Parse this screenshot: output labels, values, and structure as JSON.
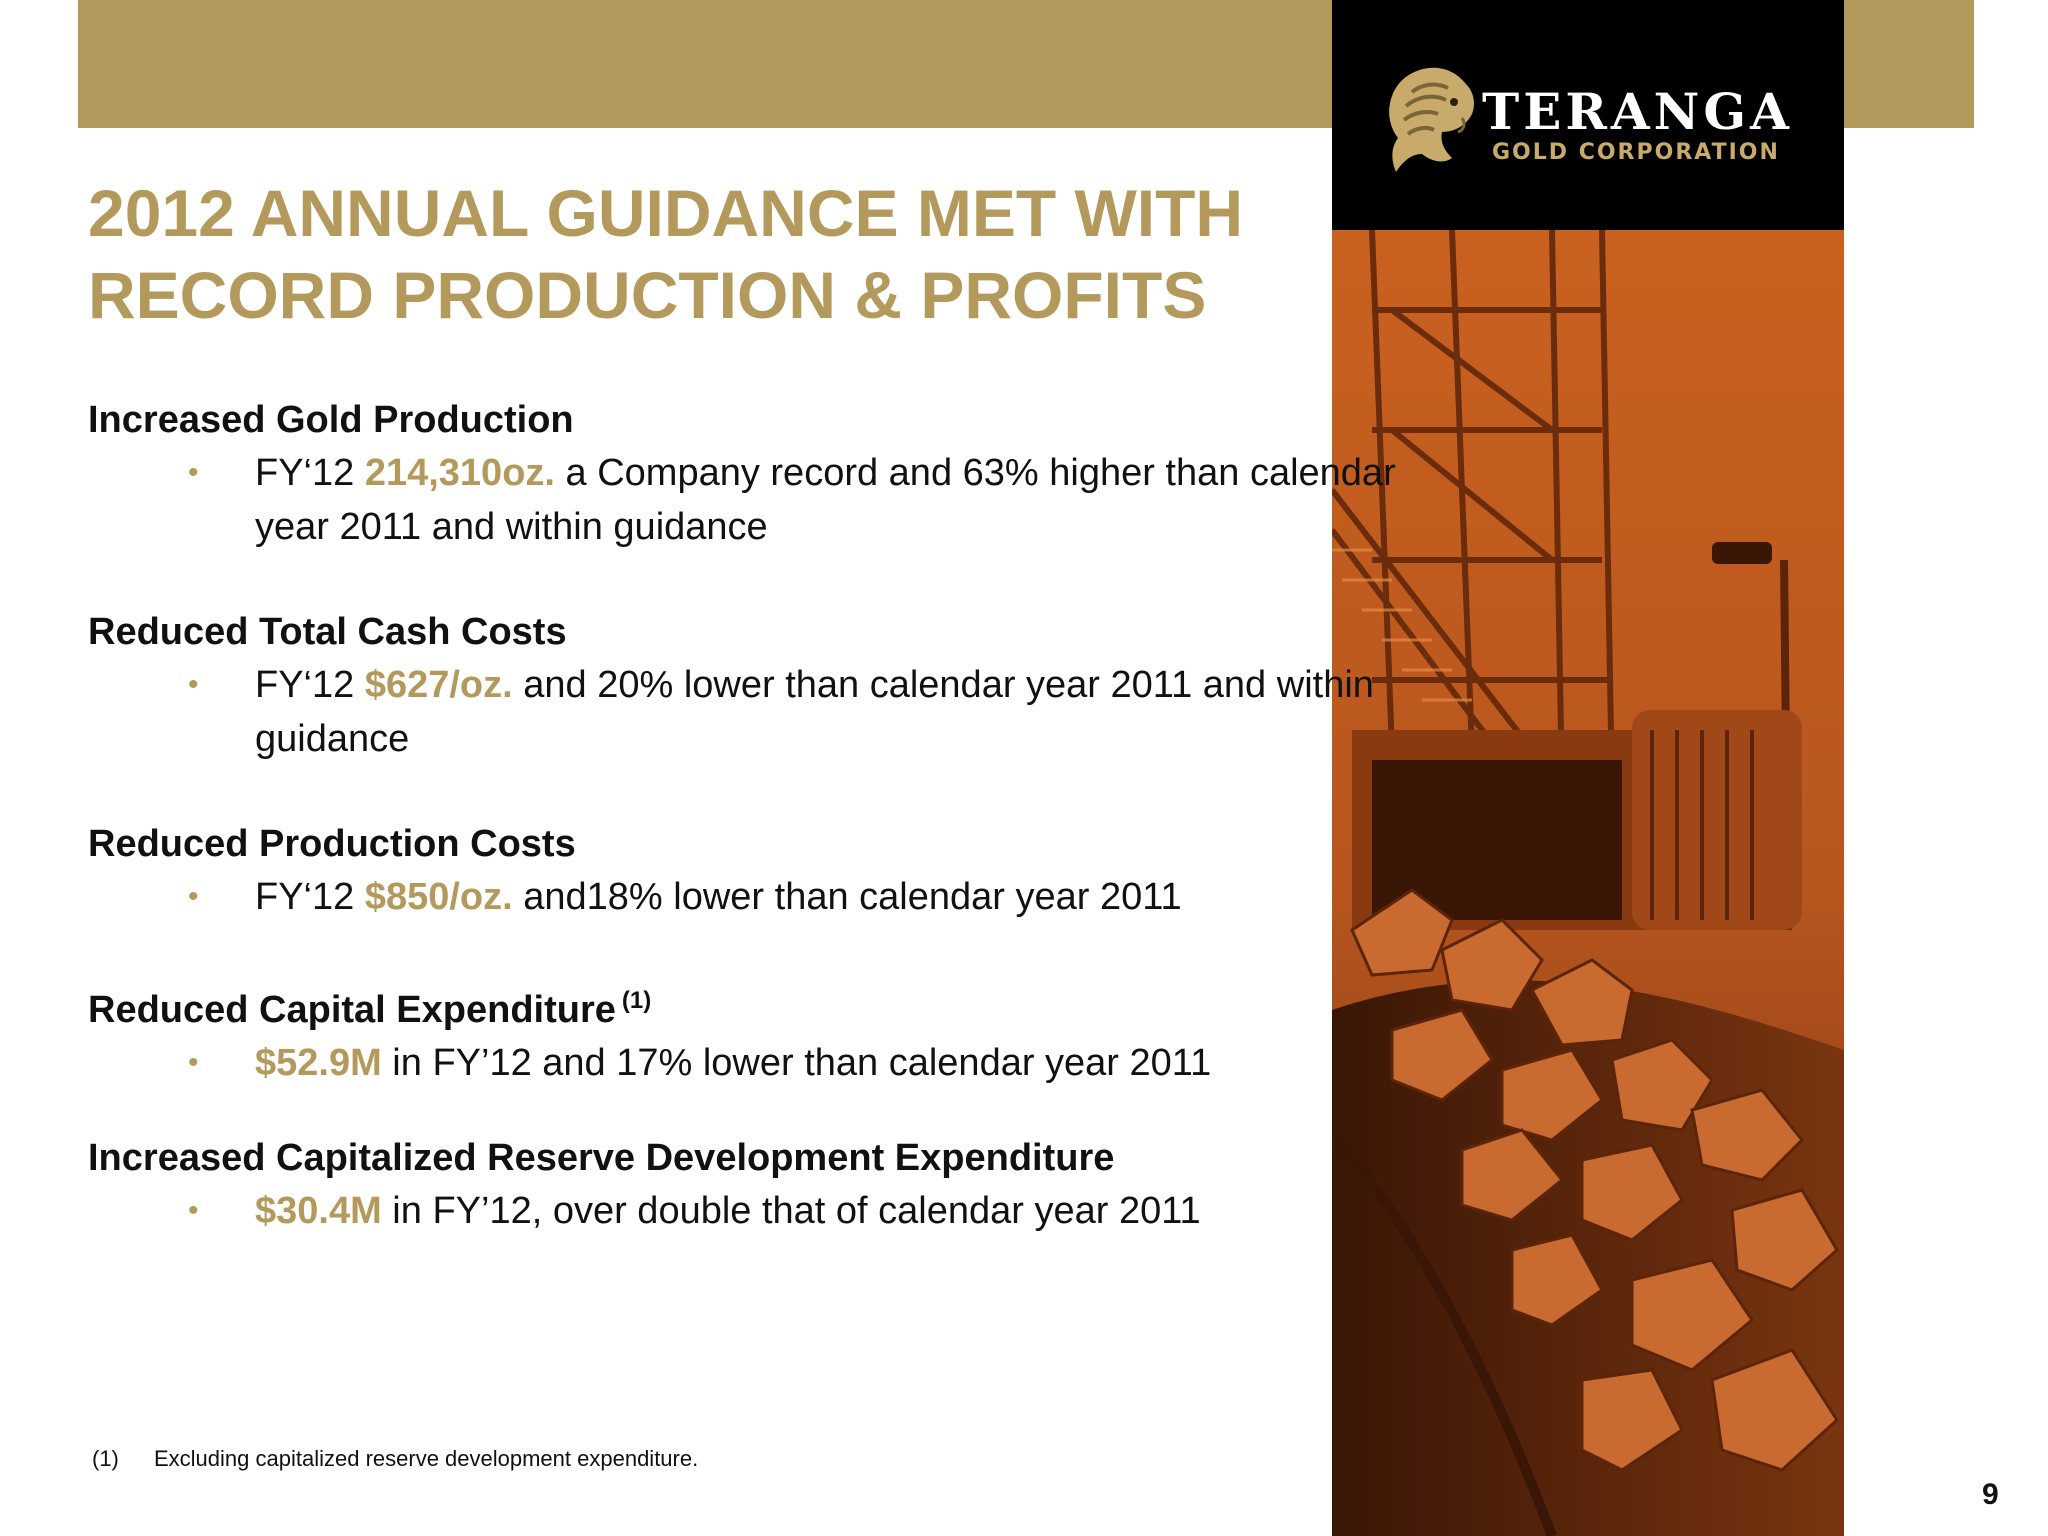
{
  "logo": {
    "name": "TERANGA",
    "subtitle": "GOLD CORPORATION"
  },
  "title": {
    "line1": "2012 ANNUAL GUIDANCE MET WITH",
    "line2": "RECORD PRODUCTION & PROFITS"
  },
  "sections": [
    {
      "heading": "Increased Gold Production",
      "bullet": {
        "pre": "FY‘12 ",
        "highlight": "214,310oz.",
        "post": "  a Company record and 63% higher than calendar year 2011 and within guidance"
      }
    },
    {
      "heading": "Reduced Total Cash Costs",
      "bullet": {
        "pre": "FY‘12 ",
        "highlight": "$627/oz.",
        "post": " and 20% lower than calendar year 2011 and within guidance"
      }
    },
    {
      "heading": "Reduced Production Costs",
      "bullet": {
        "pre": "FY‘12 ",
        "highlight": "$850/oz.",
        "post": " and18% lower than calendar year 2011"
      }
    },
    {
      "heading": "Reduced Capital Expenditure",
      "heading_note": "(1)",
      "bullet": {
        "pre": "",
        "highlight": "$52.9M",
        "post": " in FY’12 and 17% lower than calendar year 2011"
      }
    },
    {
      "heading": "Increased Capitalized Reserve Development Expenditure",
      "bullet": {
        "pre": "",
        "highlight": "$30.4M",
        "post": " in FY’12, over double that of calendar year 2011"
      }
    }
  ],
  "bullet_symbol": "•",
  "footnote": {
    "marker": "(1)",
    "text": "Excluding capitalized reserve development expenditure."
  },
  "page_number": "9",
  "colors": {
    "accent_gold": "#b39a5c",
    "text": "#111111",
    "photo_orange": "#b8561f"
  }
}
